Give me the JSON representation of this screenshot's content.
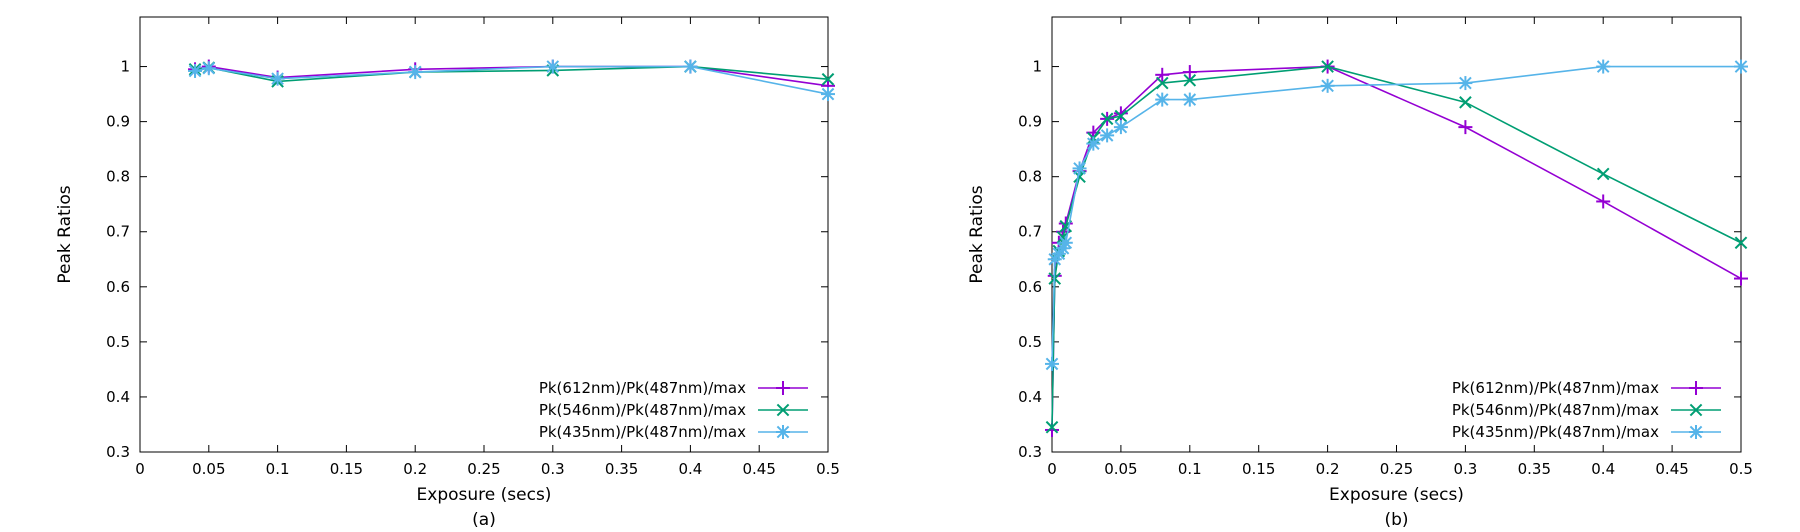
{
  "chart_data": [
    {
      "type": "line",
      "caption": "(a)",
      "xlabel": "Exposure (secs)",
      "ylabel": "Peak Ratios",
      "xlim": [
        0,
        0.5
      ],
      "ylim": [
        0.3,
        1.09
      ],
      "xticks": [
        0,
        0.05,
        0.1,
        0.15,
        0.2,
        0.25,
        0.3,
        0.35,
        0.4,
        0.45,
        0.5
      ],
      "xtick_labels": [
        "0",
        "0.05",
        "0.1",
        "0.15",
        "0.2",
        "0.25",
        "0.3",
        "0.35",
        "0.4",
        "0.45",
        "0.5"
      ],
      "yticks": [
        0.3,
        0.4,
        0.5,
        0.6,
        0.7,
        0.8,
        0.9,
        1
      ],
      "ytick_labels": [
        "0.3",
        "0.4",
        "0.5",
        "0.6",
        "0.7",
        "0.8",
        "0.9",
        "1"
      ],
      "grid": false,
      "legend_position": "bottom-right",
      "series": [
        {
          "name": "Pk(612nm)/Pk(487nm)/max",
          "color": "#9400d3",
          "marker": "plus",
          "x": [
            0.04,
            0.05,
            0.1,
            0.2,
            0.3,
            0.4,
            0.5
          ],
          "y": [
            0.995,
            1.0,
            0.98,
            0.995,
            1.0,
            1.0,
            0.965
          ]
        },
        {
          "name": "Pk(546nm)/Pk(487nm)/max",
          "color": "#009e73",
          "marker": "cross",
          "x": [
            0.04,
            0.05,
            0.1,
            0.2,
            0.3,
            0.4,
            0.5
          ],
          "y": [
            0.995,
            0.998,
            0.973,
            0.99,
            0.993,
            1.0,
            0.977
          ]
        },
        {
          "name": "Pk(435nm)/Pk(487nm)/max",
          "color": "#56b4e9",
          "marker": "star",
          "x": [
            0.04,
            0.05,
            0.1,
            0.2,
            0.3,
            0.4,
            0.5
          ],
          "y": [
            0.992,
            0.997,
            0.978,
            0.99,
            1.0,
            1.0,
            0.95
          ]
        }
      ]
    },
    {
      "type": "line",
      "caption": "(b)",
      "xlabel": "Exposure (secs)",
      "ylabel": "Peak Ratios",
      "xlim": [
        0,
        0.5
      ],
      "ylim": [
        0.3,
        1.09
      ],
      "xticks": [
        0,
        0.05,
        0.1,
        0.15,
        0.2,
        0.25,
        0.3,
        0.35,
        0.4,
        0.45,
        0.5
      ],
      "xtick_labels": [
        "0",
        "0.05",
        "0.1",
        "0.15",
        "0.2",
        "0.25",
        "0.3",
        "0.35",
        "0.4",
        "0.45",
        "0.5"
      ],
      "yticks": [
        0.3,
        0.4,
        0.5,
        0.6,
        0.7,
        0.8,
        0.9,
        1
      ],
      "ytick_labels": [
        "0.3",
        "0.4",
        "0.5",
        "0.6",
        "0.7",
        "0.8",
        "0.9",
        "1"
      ],
      "grid": false,
      "legend_position": "bottom-right",
      "series": [
        {
          "name": "Pk(612nm)/Pk(487nm)/max",
          "color": "#9400d3",
          "marker": "plus",
          "x": [
            0,
            0.002,
            0.005,
            0.008,
            0.01,
            0.02,
            0.03,
            0.04,
            0.05,
            0.08,
            0.1,
            0.2,
            0.3,
            0.4,
            0.5
          ],
          "y": [
            0.34,
            0.62,
            0.68,
            0.7,
            0.715,
            0.81,
            0.88,
            0.905,
            0.915,
            0.985,
            0.99,
            1.0,
            0.89,
            0.755,
            0.615
          ]
        },
        {
          "name": "Pk(546nm)/Pk(487nm)/max",
          "color": "#009e73",
          "marker": "cross",
          "x": [
            0,
            0.002,
            0.005,
            0.008,
            0.01,
            0.02,
            0.03,
            0.04,
            0.05,
            0.08,
            0.1,
            0.2,
            0.3,
            0.4,
            0.5
          ],
          "y": [
            0.345,
            0.615,
            0.665,
            0.69,
            0.71,
            0.8,
            0.87,
            0.905,
            0.91,
            0.97,
            0.975,
            1.0,
            0.935,
            0.805,
            0.68
          ]
        },
        {
          "name": "Pk(435nm)/Pk(487nm)/max",
          "color": "#56b4e9",
          "marker": "star",
          "x": [
            0,
            0.002,
            0.005,
            0.008,
            0.01,
            0.02,
            0.03,
            0.04,
            0.05,
            0.08,
            0.1,
            0.2,
            0.3,
            0.4,
            0.5
          ],
          "y": [
            0.46,
            0.65,
            0.66,
            0.67,
            0.68,
            0.815,
            0.86,
            0.875,
            0.89,
            0.94,
            0.94,
            0.965,
            0.97,
            1.0,
            1.0
          ]
        }
      ]
    }
  ]
}
